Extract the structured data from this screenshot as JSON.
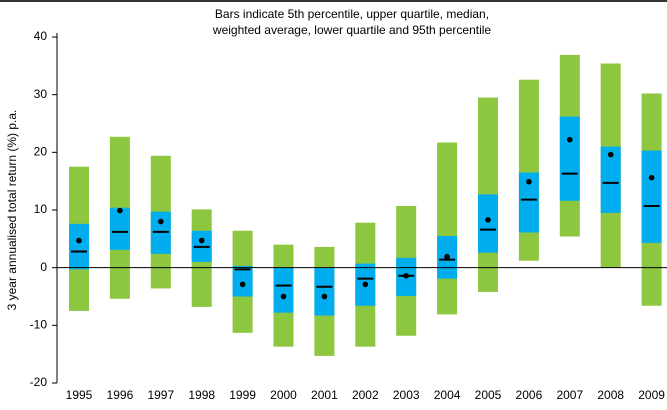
{
  "chart_data": {
    "type": "percentile-bar",
    "title": "Bars indicate 5th percentile, upper quartile, median,",
    "subtitle": "weighted average, lower quartile and 95th percentile",
    "y_label": "3 year annualised total return (%) p.a.",
    "categories": [
      "1995",
      "1996",
      "1997",
      "1998",
      "1999",
      "2000",
      "2001",
      "2002",
      "2003",
      "2004",
      "2005",
      "2006",
      "2007",
      "2008",
      "2009"
    ],
    "p5": [
      -7.5,
      -5.4,
      -3.6,
      -6.8,
      -11.3,
      -13.7,
      -15.3,
      -13.7,
      -11.8,
      -8.1,
      -4.2,
      1.2,
      5.4,
      0,
      -6.6
    ],
    "lower_quartile": [
      -0.3,
      3.1,
      2.4,
      1.0,
      -5.0,
      -7.8,
      -8.3,
      -6.6,
      -4.9,
      -1.9,
      2.6,
      6.1,
      11.6,
      9.5,
      4.3
    ],
    "median": [
      2.8,
      6.2,
      6.2,
      3.6,
      -0.3,
      -3.1,
      -3.3,
      -1.9,
      -1.4,
      1.4,
      6.6,
      11.8,
      16.3,
      14.7,
      10.7
    ],
    "weighted_average": [
      4.7,
      9.9,
      8.0,
      4.7,
      -2.9,
      -5.0,
      -5.0,
      -2.9,
      -1.4,
      1.9,
      8.3,
      14.9,
      22.2,
      19.6,
      15.6
    ],
    "upper_quartile": [
      7.6,
      10.4,
      9.7,
      6.4,
      0.3,
      0,
      0,
      0.7,
      1.7,
      5.5,
      12.7,
      16.5,
      26.2,
      21.0,
      20.3
    ],
    "p95": [
      17.5,
      22.7,
      19.4,
      10.1,
      6.4,
      4.0,
      3.6,
      7.8,
      10.7,
      21.7,
      29.5,
      32.6,
      36.9,
      35.4,
      30.2
    ],
    "outer_color": "#8dc63f",
    "inner_color": "#00aeef",
    "marker_color": "#000000",
    "ylim": [
      -20,
      40
    ],
    "yticks": [
      -20,
      -10,
      0,
      10,
      20,
      30,
      40
    ]
  }
}
